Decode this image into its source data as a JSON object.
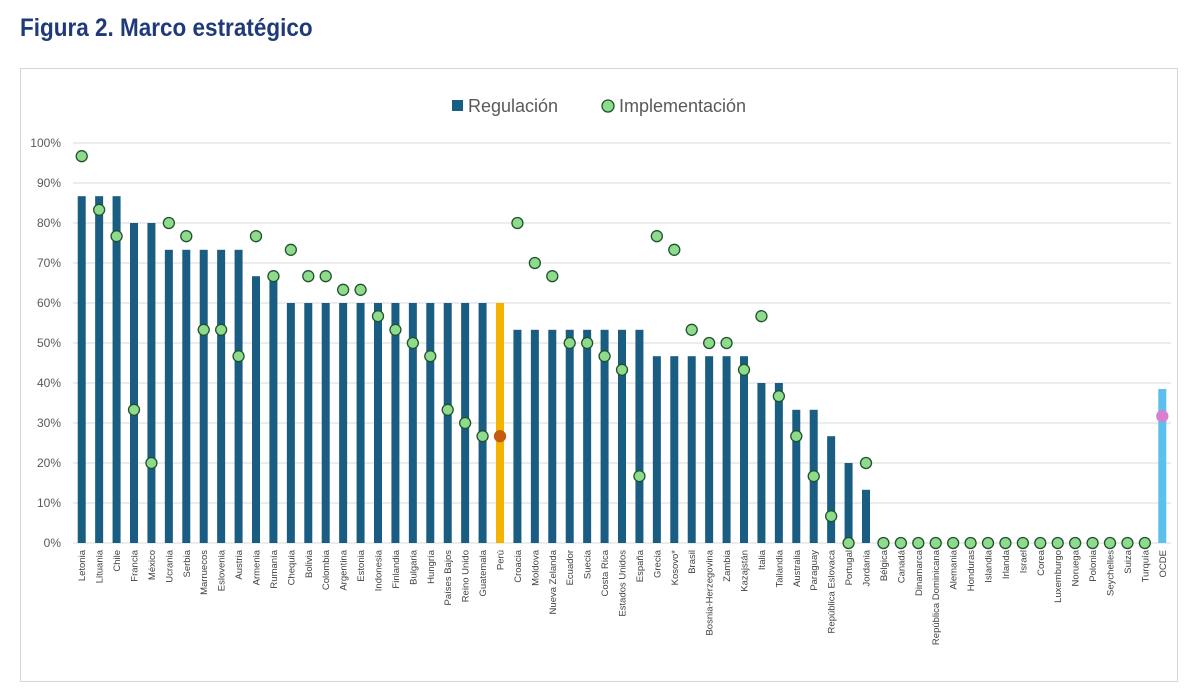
{
  "figure": {
    "title": "Figura 2. Marco estratégico"
  },
  "colors": {
    "title": "#1f3a78",
    "bar": "#1a5d82",
    "bar_peru": "#f5b301",
    "bar_ocde": "#5bc0eb",
    "dot": "#8fdb8c",
    "dot_stroke": "#1f5130",
    "dot_peru": "#c55a11",
    "dot_ocde": "#d77fd1",
    "grid": "#d9d9d9"
  },
  "chart_data": {
    "type": "bar",
    "categories": [
      "Letonia",
      "Lituania",
      "Chile",
      "Francia",
      "México",
      "Ucrania",
      "Serbia",
      "Marruecos",
      "Eslovenia",
      "Austria",
      "Armenia",
      "Rumanía",
      "Chequia",
      "Bolivia",
      "Colombia",
      "Argentina",
      "Estonia",
      "Indonesia",
      "Finlandia",
      "Bulgaria",
      "Hungría",
      "Países Bajos",
      "Reino Unido",
      "Guatemala",
      "Perú",
      "Croacia",
      "Moldova",
      "Nueva Zelanda",
      "Ecuador",
      "Suecia",
      "Costa Rica",
      "Estados Unidos",
      "España",
      "Grecia",
      "Kosovo*",
      "Brasil",
      "Bosnia-Herzegovina",
      "Zambia",
      "Kazajstán",
      "Italia",
      "Tailandia",
      "Australia",
      "Paraguay",
      "República Eslovaca",
      "Portugal",
      "Jordania",
      "Bélgica",
      "Canadá",
      "Dinamarca",
      "República Dominicana",
      "Alemania",
      "Honduras",
      "Islandia",
      "Irlanda",
      "Israel",
      "Corea",
      "Luxemburgo",
      "Noruega",
      "Polonia",
      "Seychelles",
      "Suiza",
      "Turquía",
      "OCDE"
    ],
    "series": [
      {
        "name": "Regulación",
        "marker": "bar",
        "values": [
          86.7,
          86.7,
          86.7,
          80,
          80,
          73.3,
          73.3,
          73.3,
          73.3,
          73.3,
          66.7,
          66.7,
          60,
          60,
          60,
          60,
          60,
          60,
          60,
          60,
          60,
          60,
          60,
          60,
          60,
          53.3,
          53.3,
          53.3,
          53.3,
          53.3,
          53.3,
          53.3,
          53.3,
          46.7,
          46.7,
          46.7,
          46.7,
          46.7,
          46.7,
          40,
          40,
          33.3,
          33.3,
          26.7,
          20,
          13.3,
          0,
          0,
          0,
          0,
          0,
          0,
          0,
          0,
          0,
          0,
          0,
          0,
          0,
          0,
          0,
          0,
          38.5
        ]
      },
      {
        "name": "Implementación",
        "marker": "dot",
        "values": [
          96.7,
          83.3,
          76.7,
          33.3,
          20,
          80,
          76.7,
          53.3,
          53.3,
          46.7,
          76.7,
          66.7,
          73.3,
          66.7,
          66.7,
          63.3,
          63.3,
          56.7,
          53.3,
          50,
          46.7,
          33.3,
          30,
          26.7,
          26.7,
          80,
          70,
          66.7,
          50,
          50,
          46.7,
          43.3,
          16.7,
          76.7,
          73.3,
          53.3,
          50,
          50,
          43.3,
          56.7,
          36.7,
          26.7,
          16.7,
          6.7,
          0,
          20,
          0,
          0,
          0,
          0,
          0,
          0,
          0,
          0,
          0,
          0,
          0,
          0,
          0,
          0,
          0,
          0,
          31.7
        ]
      }
    ],
    "highlight": {
      "Perú": "peru",
      "OCDE": "ocde"
    },
    "y_ticks": [
      "0%",
      "10%",
      "20%",
      "30%",
      "40%",
      "50%",
      "60%",
      "70%",
      "80%",
      "90%",
      "100%"
    ],
    "ylim": [
      0,
      100
    ],
    "grid": true,
    "legend": "top-center",
    "xlabel": "",
    "ylabel": ""
  }
}
